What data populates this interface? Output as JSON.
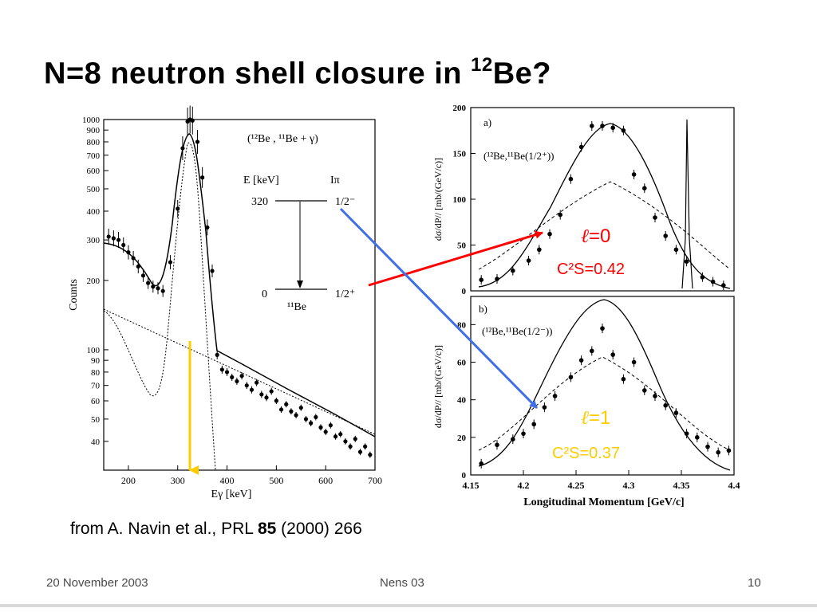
{
  "slide": {
    "title_main": "N=8 neutron shell closure in ",
    "title_sup": "12",
    "title_end": "Be?",
    "caption_pre": "from A. Navin et al., PRL ",
    "caption_bold": "85",
    "caption_post": " (2000) 266",
    "footer_date": "20 November 2003",
    "footer_center": "Nens 03",
    "footer_page": "10"
  },
  "annotations": {
    "l0_eq": "=0",
    "l0_c2s": "C²S=0.42",
    "l1_eq": "=1",
    "l1_c2s": "C²S=0.37",
    "arrow_red": "#ff0000",
    "arrow_blue": "#3f6fe8",
    "arrow_yellow": "#ffcc00"
  },
  "chart_data": [
    {
      "type": "scatter",
      "panel": "gamma-spectrum",
      "xlabel": "Eγ [keV]",
      "ylabel": "Counts",
      "scale_y": "log",
      "xlim": [
        150,
        700
      ],
      "ylim": [
        30,
        1000
      ],
      "xticks": [
        "200",
        "300",
        "400",
        "500",
        "600",
        "700"
      ],
      "yticks": [
        "1000",
        "900",
        "800",
        "700",
        "600",
        "500",
        "400",
        "300",
        "200",
        "100",
        "90",
        "80",
        "70",
        "60",
        "50",
        "40"
      ],
      "legend": "(¹²Be , ¹¹Be + γ)",
      "level_scheme": {
        "header_e": "E [keV]",
        "header_i": "Iπ",
        "level_hi_e": "320",
        "level_hi_spin": "1/2⁻",
        "level_lo_e": "0",
        "level_lo_spin": "1/2⁺",
        "nucleus": "¹¹Be"
      },
      "points": [
        [
          160,
          310
        ],
        [
          170,
          305
        ],
        [
          180,
          300
        ],
        [
          190,
          285
        ],
        [
          200,
          265
        ],
        [
          210,
          250
        ],
        [
          220,
          230
        ],
        [
          230,
          210
        ],
        [
          240,
          195
        ],
        [
          250,
          188
        ],
        [
          260,
          185
        ],
        [
          270,
          180
        ],
        [
          285,
          240
        ],
        [
          300,
          410
        ],
        [
          310,
          750
        ],
        [
          320,
          980
        ],
        [
          325,
          1000
        ],
        [
          330,
          990
        ],
        [
          340,
          800
        ],
        [
          350,
          560
        ],
        [
          360,
          340
        ],
        [
          370,
          220
        ],
        [
          380,
          95
        ],
        [
          390,
          82
        ],
        [
          400,
          80
        ],
        [
          410,
          76
        ],
        [
          420,
          73
        ],
        [
          430,
          77
        ],
        [
          440,
          70
        ],
        [
          450,
          67
        ],
        [
          460,
          72
        ],
        [
          470,
          64
        ],
        [
          480,
          62
        ],
        [
          490,
          66
        ],
        [
          500,
          60
        ],
        [
          510,
          55
        ],
        [
          520,
          58
        ],
        [
          530,
          54
        ],
        [
          540,
          52
        ],
        [
          550,
          56
        ],
        [
          560,
          50
        ],
        [
          570,
          48
        ],
        [
          580,
          51
        ],
        [
          590,
          46
        ],
        [
          600,
          44
        ],
        [
          610,
          47
        ],
        [
          620,
          42
        ],
        [
          630,
          43
        ],
        [
          640,
          40
        ],
        [
          650,
          38
        ],
        [
          660,
          41
        ],
        [
          670,
          36
        ],
        [
          680,
          38
        ],
        [
          690,
          35
        ]
      ],
      "errors": [
        20,
        20,
        20,
        19,
        18,
        18,
        17,
        16,
        15,
        15,
        15,
        15,
        18,
        22,
        30,
        35,
        35,
        35,
        30,
        26,
        20,
        16,
        11,
        10,
        10,
        9,
        9,
        9,
        9,
        9,
        9,
        9,
        9,
        9,
        8,
        8,
        8,
        8,
        8,
        8,
        8,
        8,
        8,
        8,
        8,
        8,
        8,
        8,
        8,
        8,
        8,
        8,
        8,
        8
      ]
    },
    {
      "type": "scatter",
      "panel": "a",
      "panel_label": "a)",
      "legend": "(¹²Be,¹¹Be(1/2⁺))",
      "ylabel": "dσ/dP// [mb/(GeV/c)]",
      "xlim": [
        4.15,
        4.4
      ],
      "ylim": [
        0,
        200
      ],
      "yticks": [
        "0",
        "50",
        "100",
        "150",
        "200"
      ],
      "x": [
        4.16,
        4.175,
        4.19,
        4.205,
        4.215,
        4.225,
        4.235,
        4.245,
        4.255,
        4.265,
        4.275,
        4.285,
        4.295,
        4.305,
        4.315,
        4.325,
        4.335,
        4.345,
        4.355,
        4.37,
        4.38,
        4.39
      ],
      "y": [
        12,
        13,
        22,
        33,
        45,
        62,
        83,
        122,
        157,
        180,
        180,
        178,
        175,
        127,
        112,
        80,
        60,
        45,
        32,
        15,
        10,
        6
      ]
    },
    {
      "type": "scatter",
      "panel": "b",
      "panel_label": "b)",
      "legend": "(¹²Be,¹¹Be(1/2⁻))",
      "ylabel": "dσ/dP// [mb/(GeV/c)]",
      "xlabel": "Longitudinal Momentum [GeV/c]",
      "xlim": [
        4.15,
        4.4
      ],
      "ylim": [
        0,
        95
      ],
      "xticks": [
        "4.15",
        "4.2",
        "4.25",
        "4.3",
        "4.35",
        "4.4"
      ],
      "yticks": [
        "0",
        "20",
        "40",
        "60",
        "80"
      ],
      "x": [
        4.16,
        4.175,
        4.19,
        4.2,
        4.21,
        4.22,
        4.23,
        4.245,
        4.255,
        4.265,
        4.275,
        4.285,
        4.295,
        4.305,
        4.315,
        4.325,
        4.335,
        4.345,
        4.355,
        4.365,
        4.375,
        4.385,
        4.395
      ],
      "y": [
        6,
        16,
        19,
        22,
        27,
        36,
        42,
        52,
        61,
        66,
        78,
        64,
        51,
        60,
        45,
        42,
        37,
        33,
        22,
        20,
        15,
        12,
        13
      ]
    }
  ]
}
